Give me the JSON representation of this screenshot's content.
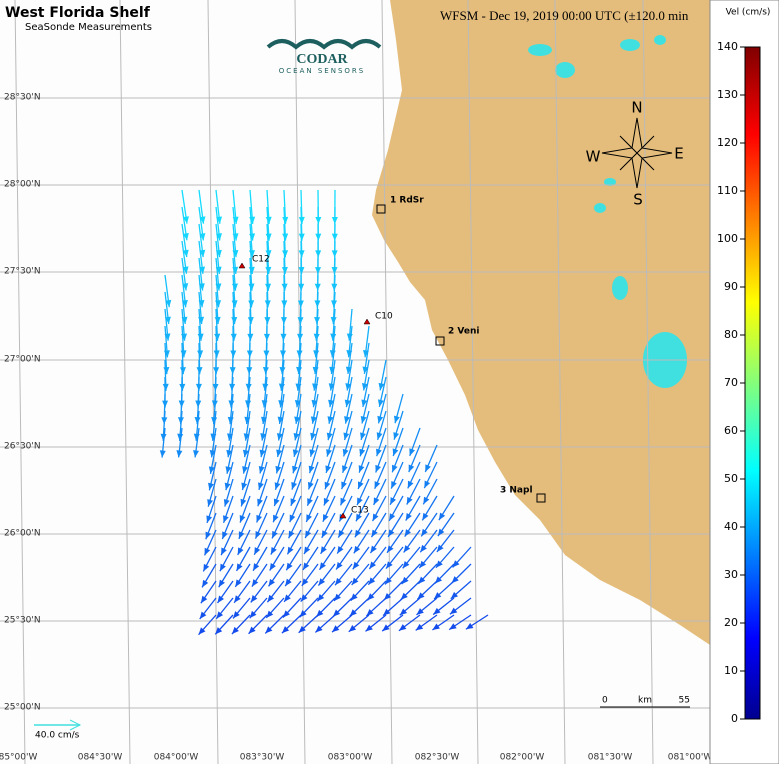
{
  "header": {
    "title": "West Florida Shelf",
    "subtitle": "SeaSonde Measurements",
    "timestamp": "WFSM - Dec 19, 2019 00:00 UTC (±120.0 min"
  },
  "logo": {
    "name": "CODAR",
    "tagline": "OCEAN SENSORS"
  },
  "map": {
    "latitude_labels": [
      "28°30'N",
      "28°00'N",
      "27°30'N",
      "27°00'N",
      "26°30'N",
      "26°00'N",
      "25°30'N",
      "25°00'N"
    ],
    "longitude_labels": [
      "85°00'W",
      "084°30'W",
      "084°00'W",
      "083°30'W",
      "083°00'W",
      "082°30'W",
      "082°00'W",
      "081°30'W",
      "081°00'W"
    ],
    "stations": [
      "1 RdSr",
      "2 Veni",
      "3 Napl"
    ],
    "sites": [
      "C12",
      "C10",
      "C13"
    ],
    "compass": [
      "N",
      "E",
      "S",
      "W"
    ],
    "scale_bar": [
      "0",
      "km",
      "55"
    ],
    "reference_vector": "40.0 cm/s"
  },
  "colorbar": {
    "title": "Vel (cm/s)",
    "ticks": [
      0,
      10,
      20,
      30,
      40,
      50,
      60,
      70,
      80,
      90,
      100,
      110,
      120,
      130,
      140
    ]
  }
}
